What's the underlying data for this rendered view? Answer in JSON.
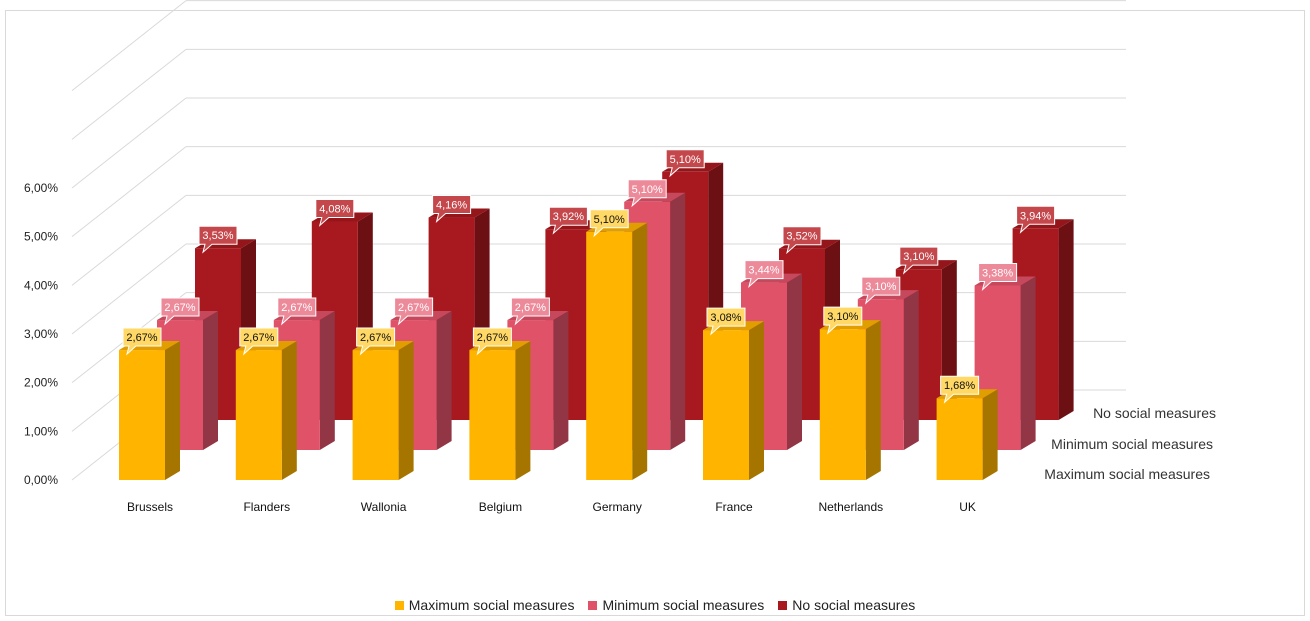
{
  "chart_data": {
    "type": "bar",
    "title": "",
    "xlabel": "",
    "ylabel": "",
    "ylim": [
      0,
      0.06
    ],
    "yticks": [
      "0,00%",
      "1,00%",
      "2,00%",
      "3,00%",
      "4,00%",
      "5,00%",
      "6,00%"
    ],
    "categories": [
      "Brussels",
      "Flanders",
      "Wallonia",
      "Belgium",
      "Germany",
      "France",
      "Netherlands",
      "UK"
    ],
    "series": [
      {
        "name": "Maximum social measures",
        "color": "#ffb400",
        "values": [
          0.0267,
          0.0267,
          0.0267,
          0.0267,
          0.051,
          0.0308,
          0.031,
          0.0168
        ],
        "labels": [
          "2,67%",
          "2,67%",
          "2,67%",
          "2,67%",
          "5,10%",
          "3,08%",
          "3,10%",
          "1,68%"
        ]
      },
      {
        "name": "Minimum social measures",
        "color": "#e05268",
        "values": [
          0.0267,
          0.0267,
          0.0267,
          0.0267,
          0.051,
          0.0344,
          0.031,
          0.0338
        ],
        "labels": [
          "2,67%",
          "2,67%",
          "2,67%",
          "2,67%",
          "5,10%",
          "3,44%",
          "3,10%",
          "3,38%"
        ]
      },
      {
        "name": "No social measures",
        "color": "#a8191f",
        "values": [
          0.0353,
          0.0408,
          0.0416,
          0.0392,
          0.051,
          0.0352,
          0.031,
          0.0394
        ],
        "labels": [
          "3,53%",
          "4,08%",
          "4,16%",
          "3,92%",
          "5,10%",
          "3,52%",
          "3,10%",
          "3,94%"
        ]
      }
    ],
    "depth_labels": [
      "No social measures",
      "Minimum social measures",
      "Maximum social measures"
    ],
    "legend_position": "bottom",
    "grid": true,
    "style": "3d-column"
  }
}
